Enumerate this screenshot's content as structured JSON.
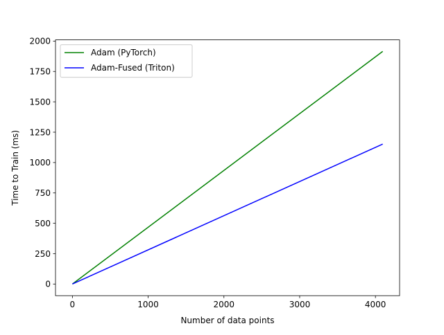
{
  "chart_data": {
    "type": "line",
    "title": "",
    "xlabel": "Number of data points",
    "ylabel": "Time to Train (ms)",
    "xlim": [
      -223,
      4319
    ],
    "ylim": [
      -96,
      2010
    ],
    "xticks": [
      0,
      1000,
      2000,
      3000,
      4000
    ],
    "xtick_labels": [
      "0",
      "1000",
      "2000",
      "3000",
      "4000"
    ],
    "yticks": [
      0,
      250,
      500,
      750,
      1000,
      1250,
      1500,
      1750,
      2000
    ],
    "ytick_labels": [
      "0",
      "250",
      "500",
      "750",
      "1000",
      "1250",
      "1500",
      "1750",
      "2000"
    ],
    "grid": false,
    "legend": "top-left",
    "series": [
      {
        "name": "Adam (PyTorch)",
        "color": "#008000",
        "x": [
          0,
          4096
        ],
        "y": [
          0,
          1915
        ]
      },
      {
        "name": "Adam-Fused (Triton)",
        "color": "#0000ff",
        "x": [
          0,
          4096
        ],
        "y": [
          0,
          1152
        ]
      }
    ]
  }
}
